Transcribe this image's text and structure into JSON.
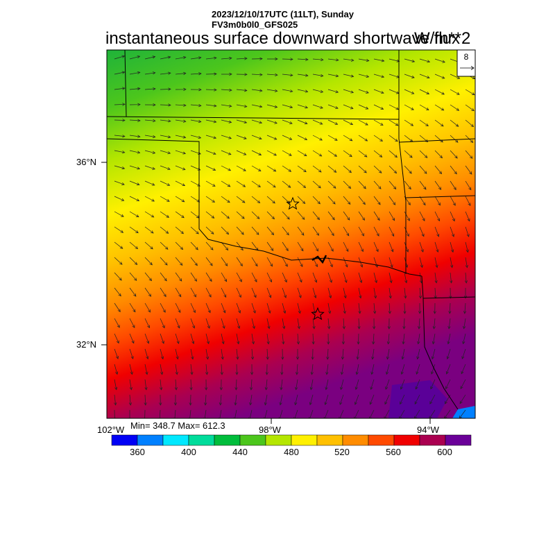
{
  "header": {
    "timestamp": "2023/12/10/17UTC (11LT), Sunday",
    "run_name": "FV3m0b0l0_GFS025",
    "title": "instantaneous surface downward shortwave flux",
    "units": "W/m**2"
  },
  "vector_reference": {
    "label": "8"
  },
  "axes": {
    "lat_labels": [
      "36°N",
      "32°N"
    ],
    "lon_labels": [
      "102°W",
      "98°W",
      "94°W"
    ]
  },
  "stats": {
    "text": "Min= 348.7 Max= 612.3",
    "min": 348.7,
    "max": 612.3
  },
  "colorbar": {
    "colors": [
      "#0000f5",
      "#0080ff",
      "#00e8ff",
      "#00dc9b",
      "#00bd3c",
      "#4cc61c",
      "#b4e600",
      "#fff000",
      "#ffc000",
      "#ff8c00",
      "#ff4a00",
      "#f00000",
      "#aa0050",
      "#6a0098"
    ],
    "labels": [
      "360",
      "400",
      "440",
      "480",
      "520",
      "560",
      "600"
    ]
  },
  "markers": {
    "count": 2
  }
}
